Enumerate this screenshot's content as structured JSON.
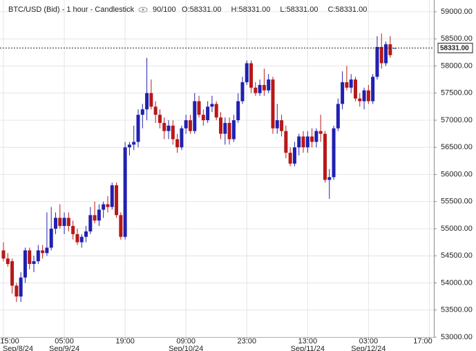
{
  "chart_data": {
    "type": "candlestick",
    "title": "BTC/USD (Bid) - 1 hour - Candlestick",
    "count_label": "90/100",
    "ohlc_labels": [
      "O:58331.00",
      "H:58331.00",
      "L:58331.00",
      "C:58331.00"
    ],
    "last_price": {
      "value": 58331,
      "label": "58331.00"
    },
    "up_color": "#2020b0",
    "down_color": "#b81818",
    "grid": true,
    "categories": [
      "15:00",
      null,
      null,
      null,
      null,
      null,
      null,
      null,
      null,
      null,
      null,
      null,
      null,
      null,
      "05:00",
      null,
      null,
      null,
      null,
      null,
      null,
      null,
      null,
      null,
      null,
      null,
      null,
      null,
      "19:00",
      null,
      null,
      null,
      null,
      null,
      null,
      null,
      null,
      null,
      null,
      null,
      null,
      null,
      "09:00",
      null,
      null,
      null,
      null,
      null,
      null,
      null,
      null,
      null,
      null,
      null,
      null,
      null,
      "23:00",
      null,
      null,
      null,
      null,
      null,
      null,
      null,
      null,
      null,
      null,
      null,
      null,
      null,
      "13:00",
      null,
      null,
      null,
      null,
      null,
      null,
      null,
      null,
      null,
      null,
      null,
      null,
      null,
      "03:00",
      null,
      null,
      null,
      null,
      null,
      null,
      null,
      null,
      null,
      null,
      null,
      null,
      null,
      "17:00"
    ],
    "category_dates": [
      "Sep/8/24",
      null,
      null,
      null,
      null,
      null,
      null,
      null,
      null,
      null,
      null,
      null,
      null,
      null,
      "Sep/9/24",
      null,
      null,
      null,
      null,
      null,
      null,
      null,
      null,
      null,
      null,
      null,
      null,
      null,
      null,
      null,
      null,
      null,
      null,
      null,
      null,
      null,
      null,
      null,
      null,
      null,
      null,
      null,
      "Sep/10/24",
      null,
      null,
      null,
      null,
      null,
      null,
      null,
      null,
      null,
      null,
      null,
      null,
      null,
      null,
      null,
      null,
      null,
      null,
      null,
      null,
      null,
      null,
      null,
      null,
      null,
      null,
      null,
      "Sep/11/24",
      null,
      null,
      null,
      null,
      null,
      null,
      null,
      null,
      null,
      null,
      null,
      null,
      null,
      "Sep/12/24",
      null,
      null,
      null,
      null,
      null,
      null,
      null,
      null,
      null,
      null,
      null,
      null,
      null,
      null
    ],
    "open": [
      54600,
      54450,
      54400,
      53950,
      53750,
      54100,
      54600,
      54350,
      54400,
      54600,
      54550,
      54650,
      55000,
      55200,
      55050,
      55200,
      55050,
      54900,
      54750,
      54850,
      54950,
      55250,
      55150,
      55350,
      55450,
      55400,
      55800,
      55250,
      54850,
      56500,
      56550,
      56600,
      57100,
      57200,
      57500,
      57250,
      57100,
      56950,
      56800,
      56900,
      56650,
      56500,
      56850,
      57000,
      56800,
      57350,
      57100,
      57000,
      57250,
      57300,
      57050,
      56750,
      56950,
      56650,
      57000,
      57350,
      57700,
      58050,
      57600,
      57500,
      57650,
      57550,
      57750,
      56850,
      57000,
      56800,
      56400,
      56200,
      56500,
      56700,
      56500,
      56700,
      56600,
      56800,
      56750,
      55900,
      55950,
      56850,
      57300,
      57700,
      57600,
      57750,
      57400,
      57350,
      57550,
      57350,
      57800,
      58350,
      58050,
      58400,
      58331,
      null,
      null,
      null,
      null,
      null,
      null,
      null,
      null
    ],
    "high": [
      54750,
      54550,
      54450,
      54000,
      54200,
      54650,
      54650,
      54500,
      54700,
      54700,
      55300,
      55400,
      55300,
      55450,
      55300,
      55300,
      55150,
      55000,
      54900,
      55050,
      55400,
      55500,
      55450,
      55500,
      55600,
      55850,
      55850,
      55300,
      56600,
      56600,
      56900,
      57200,
      57300,
      58150,
      57750,
      57350,
      57200,
      57050,
      57000,
      57000,
      56750,
      56900,
      57100,
      57100,
      57500,
      57450,
      57200,
      57350,
      57450,
      57350,
      57150,
      57050,
      57050,
      57100,
      57500,
      57800,
      58100,
      58100,
      57700,
      57750,
      57950,
      57850,
      57800,
      57300,
      57100,
      56900,
      56500,
      56600,
      56750,
      56800,
      56800,
      56850,
      56850,
      57100,
      56800,
      56100,
      56900,
      57400,
      57900,
      58000,
      57850,
      57800,
      57500,
      57600,
      57650,
      57850,
      58550,
      58600,
      58450,
      58550,
      58331,
      null,
      null,
      null,
      null,
      null,
      null,
      null,
      null
    ],
    "low": [
      54400,
      54300,
      53800,
      53650,
      53650,
      54000,
      54250,
      54200,
      54350,
      54450,
      54500,
      54600,
      54900,
      55000,
      54900,
      54950,
      54800,
      54700,
      54650,
      54750,
      54900,
      55100,
      55050,
      55200,
      55300,
      55350,
      55200,
      54800,
      54800,
      56350,
      56450,
      56500,
      56850,
      57000,
      57200,
      56950,
      56850,
      56650,
      56650,
      56550,
      56400,
      56450,
      56750,
      56750,
      56750,
      57050,
      56900,
      56950,
      57150,
      57000,
      56650,
      56550,
      56550,
      56600,
      56950,
      57300,
      57650,
      57500,
      57450,
      57450,
      57450,
      57500,
      56750,
      56750,
      56700,
      56300,
      56150,
      56150,
      56350,
      56400,
      56400,
      56500,
      56500,
      56600,
      55850,
      55550,
      55900,
      56800,
      57200,
      57550,
      57500,
      57350,
      57250,
      57200,
      57300,
      57300,
      57750,
      57950,
      58000,
      58150,
      58331,
      null,
      null,
      null,
      null,
      null,
      null,
      null,
      null
    ],
    "close": [
      54450,
      54350,
      53950,
      53750,
      54100,
      54600,
      54350,
      54400,
      54600,
      54550,
      54650,
      55000,
      55200,
      55050,
      55200,
      55050,
      54900,
      54750,
      54850,
      54950,
      55250,
      55150,
      55350,
      55450,
      55400,
      55800,
      55250,
      54850,
      56500,
      56550,
      56600,
      57100,
      57200,
      57500,
      57250,
      57100,
      56950,
      56800,
      56900,
      56650,
      56500,
      56850,
      57000,
      56800,
      57350,
      57100,
      57000,
      57250,
      57300,
      57050,
      56750,
      56950,
      56650,
      57000,
      57350,
      57700,
      58050,
      57600,
      57500,
      57650,
      57550,
      57750,
      56850,
      57000,
      56800,
      56400,
      56200,
      56500,
      56700,
      56500,
      56700,
      56600,
      56800,
      56750,
      55900,
      55950,
      56850,
      57300,
      57700,
      57600,
      57750,
      57400,
      57350,
      57550,
      57350,
      57800,
      58350,
      58050,
      58400,
      58200,
      58331,
      null,
      null,
      null,
      null,
      null,
      null,
      null,
      null
    ],
    "ylim": [
      53000,
      59216
    ],
    "yticks": [
      {
        "value": 53000,
        "label": "53000.00"
      },
      {
        "value": 53500,
        "label": "53500.00"
      },
      {
        "value": 54000,
        "label": "54000.00"
      },
      {
        "value": 54500,
        "label": "54500.00"
      },
      {
        "value": 55000,
        "label": "55000.00"
      },
      {
        "value": 55500,
        "label": "55500.00"
      },
      {
        "value": 56000,
        "label": "56000.00"
      },
      {
        "value": 56500,
        "label": "56500.00"
      },
      {
        "value": 57000,
        "label": "57000.00"
      },
      {
        "value": 57500,
        "label": "57500.00"
      },
      {
        "value": 58000,
        "label": "58000.00"
      },
      {
        "value": 58500,
        "label": "58500.00"
      },
      {
        "value": 59000,
        "label": "59000.00"
      }
    ]
  }
}
